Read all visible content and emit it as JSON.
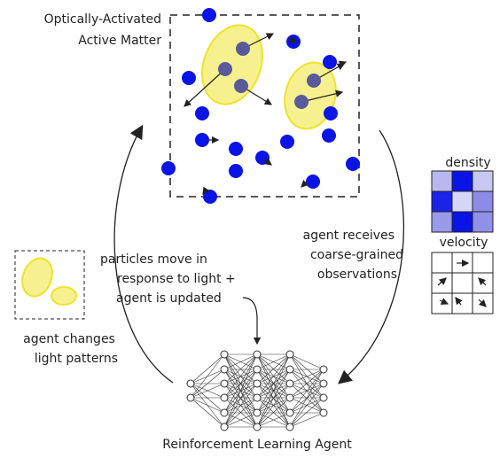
{
  "system": {
    "title": [
      "Optically-Activated",
      "Active Matter"
    ]
  },
  "observations": {
    "density": "density",
    "velocity": "velocity"
  },
  "edges": {
    "observe": [
      "agent receives",
      "coarse-grained",
      "observations"
    ],
    "update": [
      "particles move in",
      "response to light +",
      "agent is updated"
    ],
    "act": [
      "agent changes",
      "light patterns"
    ]
  },
  "agent": {
    "label": "Reinforcement Learning Agent"
  }
}
